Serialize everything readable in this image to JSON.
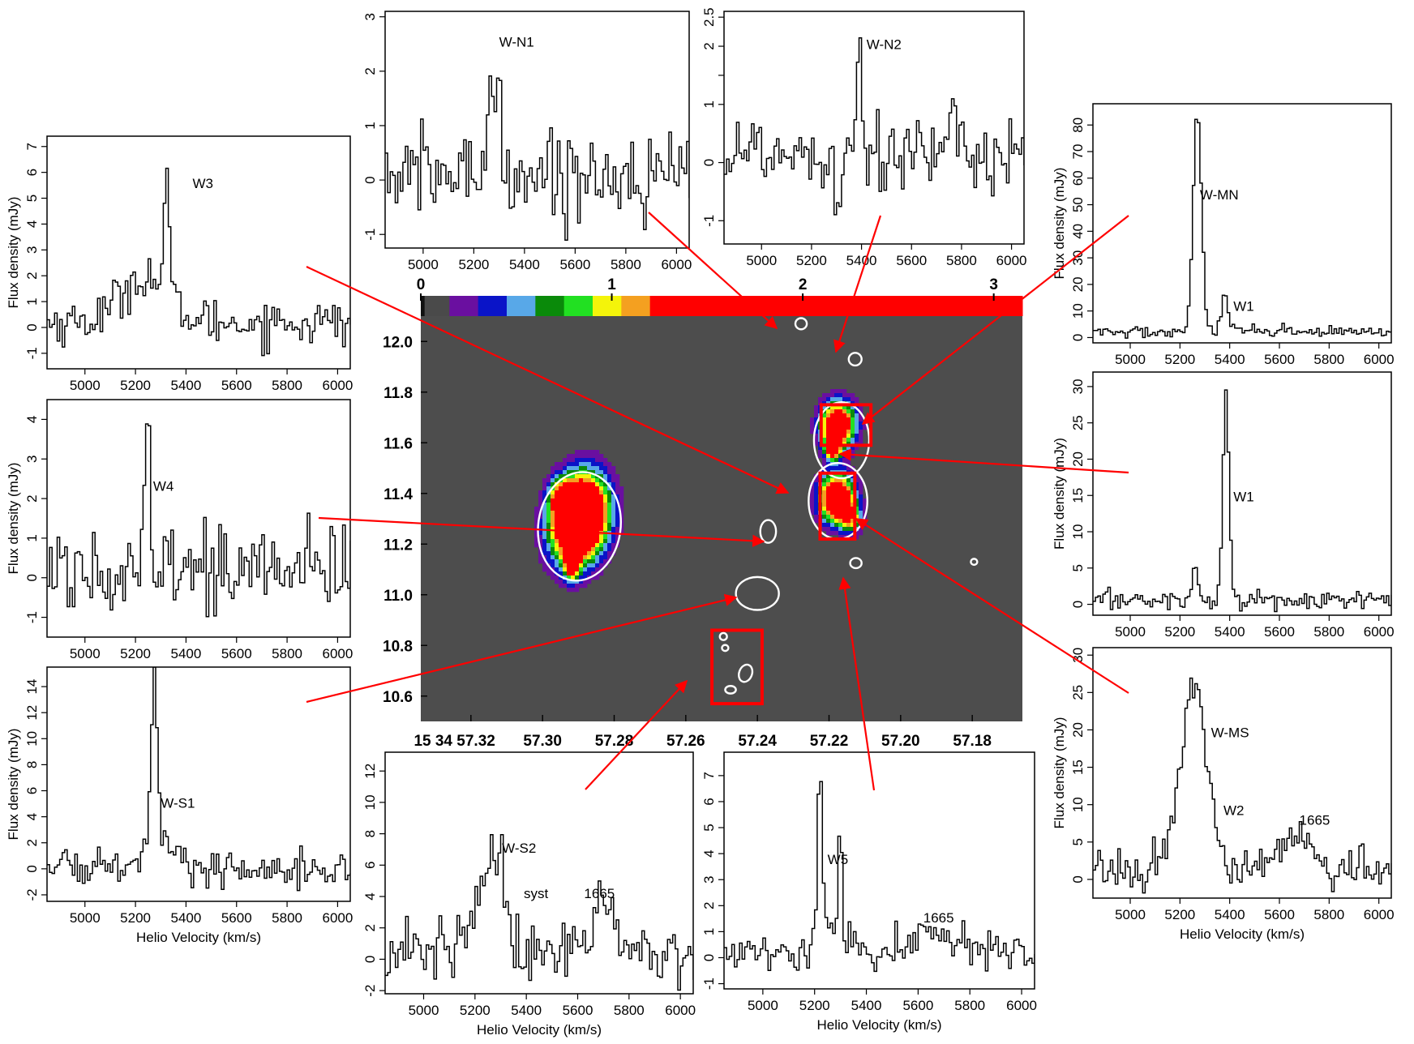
{
  "colorbar": {
    "tick_labels": [
      "0",
      "1",
      "2",
      "3"
    ],
    "tick_values": [
      0,
      1,
      2,
      3
    ],
    "range": [
      0,
      3.15
    ],
    "colors": [
      {
        "from": 0.0,
        "to": 0.02,
        "color": "#111111"
      },
      {
        "from": 0.02,
        "to": 0.15,
        "color": "#4a4a4a"
      },
      {
        "from": 0.15,
        "to": 0.3,
        "color": "#6a0fa0"
      },
      {
        "from": 0.3,
        "to": 0.45,
        "color": "#0a14c8"
      },
      {
        "from": 0.45,
        "to": 0.6,
        "color": "#58a8e8"
      },
      {
        "from": 0.6,
        "to": 0.75,
        "color": "#0a8a0a"
      },
      {
        "from": 0.75,
        "to": 0.9,
        "color": "#22e022"
      },
      {
        "from": 0.9,
        "to": 1.05,
        "color": "#f4f40a"
      },
      {
        "from": 1.05,
        "to": 1.2,
        "color": "#f4a020"
      },
      {
        "from": 1.2,
        "to": 3.15,
        "color": "#ff0000"
      }
    ]
  },
  "map": {
    "xlim": [
      57.334,
      57.166
    ],
    "ylim": [
      10.5,
      12.1
    ],
    "x_ticks": [
      57.32,
      57.3,
      57.28,
      57.26,
      57.24,
      57.22,
      57.2,
      57.18
    ],
    "x_tick_labels": [
      "15 34 57.32",
      "57.30",
      "57.28",
      "57.26",
      "57.24",
      "57.22",
      "57.20",
      "57.18"
    ],
    "y_ticks": [
      10.6,
      10.8,
      11.0,
      11.2,
      11.4,
      11.6,
      11.8,
      12.0
    ],
    "y_tick_labels": [
      "10.6",
      "10.8",
      "11.0",
      "11.2",
      "11.4",
      "11.6",
      "11.8",
      "12.0"
    ],
    "background_color": "#4d4d4d",
    "contour_color": "#ffffff",
    "box_color": "#ff0000",
    "boxes": [
      {
        "x1": 57.2222,
        "x2": 57.2083,
        "y1": 11.59,
        "y2": 11.75
      },
      {
        "x1": 57.2225,
        "x2": 57.2128,
        "y1": 11.22,
        "y2": 11.48
      },
      {
        "x1": 57.2527,
        "x2": 57.2387,
        "y1": 10.57,
        "y2": 10.86
      }
    ]
  },
  "arrows": {
    "color": "#ff0000",
    "note": "callout arrows connect panels to map regions"
  },
  "chart_data": [
    {
      "type": "line",
      "id": "W3",
      "label": "W3",
      "xlabel": "",
      "ylabel": "Flux density (mJy)",
      "xlim": [
        4850,
        6050
      ],
      "ylim": [
        -1.6,
        7.4
      ],
      "x_ticks": [
        5000,
        5200,
        5400,
        5600,
        5800,
        6000
      ],
      "y_ticks": [
        -1,
        0,
        1,
        2,
        3,
        4,
        5,
        6,
        7
      ],
      "noise": 0.45,
      "components": [
        {
          "center": 5230,
          "sigma": 90,
          "amp": 1.8
        },
        {
          "center": 5318,
          "sigma": 10,
          "amp": 4.6
        }
      ],
      "baseline": 0.2
    },
    {
      "type": "line",
      "id": "W-N1",
      "label": "W-N1",
      "xlabel": "",
      "ylabel": "",
      "xlim": [
        4850,
        6050
      ],
      "ylim": [
        -1.25,
        3.1
      ],
      "x_ticks": [
        5000,
        5200,
        5400,
        5600,
        5800,
        6000
      ],
      "y_ticks": [
        -1,
        0,
        1,
        2,
        3
      ],
      "noise": 0.4,
      "components": [
        {
          "center": 5270,
          "sigma": 20,
          "amp": 1.6
        },
        {
          "center": 5300,
          "sigma": 7,
          "amp": 1.3
        }
      ],
      "baseline": 0.1
    },
    {
      "type": "line",
      "id": "W-N2",
      "label": "W-N2",
      "xlabel": "",
      "ylabel": "",
      "xlim": [
        4850,
        6050
      ],
      "ylim": [
        -1.4,
        2.6
      ],
      "x_ticks": [
        5000,
        5200,
        5400,
        5600,
        5800,
        6000
      ],
      "y_ticks": [
        -1,
        0,
        1,
        1.5,
        2,
        2.5
      ],
      "y_tick_labels": [
        "-1",
        "0",
        "1",
        "",
        "2",
        "2.5"
      ],
      "noise": 0.35,
      "components": [
        {
          "center": 5385,
          "sigma": 9,
          "amp": 2.3
        },
        {
          "center": 5300,
          "sigma": 12,
          "amp": -0.8
        }
      ],
      "baseline": 0.2
    },
    {
      "type": "line",
      "id": "W-MN",
      "label": "W-MN",
      "label2": "W1",
      "xlabel": "",
      "ylabel": "Flux density (mJy)",
      "xlim": [
        4850,
        6050
      ],
      "ylim": [
        -2,
        88
      ],
      "x_ticks": [
        5000,
        5200,
        5400,
        5600,
        5800,
        6000
      ],
      "y_ticks": [
        0,
        10,
        20,
        30,
        40,
        50,
        60,
        70,
        80
      ],
      "noise": 1.2,
      "components": [
        {
          "center": 5265,
          "sigma": 17,
          "amp": 82
        },
        {
          "center": 5375,
          "sigma": 14,
          "amp": 14
        }
      ],
      "baseline": 2
    },
    {
      "type": "line",
      "id": "W4",
      "label": "W4",
      "xlabel": "",
      "ylabel": "Flux density (mJy)",
      "xlim": [
        4850,
        6050
      ],
      "ylim": [
        -1.5,
        4.5
      ],
      "x_ticks": [
        5000,
        5200,
        5400,
        5600,
        5800,
        6000
      ],
      "y_ticks": [
        -1,
        0,
        1,
        2,
        3,
        4
      ],
      "noise": 0.55,
      "components": [
        {
          "center": 5245,
          "sigma": 9,
          "amp": 3.8
        },
        {
          "center": 5225,
          "sigma": 25,
          "amp": 1.0
        },
        {
          "center": 5330,
          "sigma": 12,
          "amp": 1.0
        }
      ],
      "baseline": 0.2
    },
    {
      "type": "line",
      "id": "W1",
      "label": "W1",
      "xlabel": "",
      "ylabel": "Flux density (mJy)",
      "xlim": [
        4850,
        6050
      ],
      "ylim": [
        -1.5,
        32
      ],
      "x_ticks": [
        5000,
        5200,
        5400,
        5600,
        5800,
        6000
      ],
      "y_ticks": [
        0,
        5,
        10,
        15,
        20,
        25,
        30
      ],
      "noise": 0.7,
      "components": [
        {
          "center": 5380,
          "sigma": 12,
          "amp": 29
        },
        {
          "center": 5255,
          "sigma": 14,
          "amp": 3.5
        }
      ],
      "baseline": 0.6
    },
    {
      "type": "line",
      "id": "W-S1",
      "label": "W-S1",
      "xlabel": "Helio Velocity (km/s)",
      "ylabel": "Flux density (mJy)",
      "xlim": [
        4850,
        6050
      ],
      "ylim": [
        -2.5,
        15.5
      ],
      "x_ticks": [
        5000,
        5200,
        5400,
        5600,
        5800,
        6000
      ],
      "y_ticks": [
        -2,
        0,
        2,
        4,
        6,
        8,
        10,
        12,
        14
      ],
      "noise": 0.8,
      "components": [
        {
          "center": 5268,
          "sigma": 10,
          "amp": 13
        },
        {
          "center": 5280,
          "sigma": 35,
          "amp": 3.5
        }
      ],
      "baseline": 0.2
    },
    {
      "type": "line",
      "id": "W-S2",
      "label": "W-S2",
      "label2": "syst",
      "label3": "1665",
      "xlabel": "Helio Velocity (km/s)",
      "ylabel": "",
      "xlim": [
        4850,
        6050
      ],
      "ylim": [
        -2.2,
        13.2
      ],
      "x_ticks": [
        5000,
        5200,
        5400,
        5600,
        5800,
        6000
      ],
      "y_ticks": [
        -2,
        0,
        2,
        4,
        6,
        8,
        10,
        12
      ],
      "noise": 1.1,
      "components": [
        {
          "center": 5250,
          "sigma": 55,
          "amp": 5
        },
        {
          "center": 5295,
          "sigma": 7,
          "amp": 7
        },
        {
          "center": 5700,
          "sigma": 60,
          "amp": 2.2
        }
      ],
      "baseline": 0.5
    },
    {
      "type": "line",
      "id": "W5",
      "label": "W5",
      "label2": "1665",
      "xlabel": "Helio Velocity (km/s)",
      "ylabel": "",
      "xlim": [
        4850,
        6050
      ],
      "ylim": [
        -1.2,
        7.9
      ],
      "x_ticks": [
        5000,
        5200,
        5400,
        5600,
        5800,
        6000
      ],
      "y_ticks": [
        -1,
        0,
        1,
        2,
        3,
        4,
        5,
        6,
        7
      ],
      "noise": 0.4,
      "components": [
        {
          "center": 5215,
          "sigma": 8,
          "amp": 6.8
        },
        {
          "center": 5295,
          "sigma": 8,
          "amp": 4.2
        },
        {
          "center": 5255,
          "sigma": 40,
          "amp": 1.2
        },
        {
          "center": 5640,
          "sigma": 60,
          "amp": 1.0
        }
      ],
      "baseline": 0.2
    },
    {
      "type": "line",
      "id": "W-MS",
      "label": "W-MS",
      "label2": "W2",
      "label3": "1665",
      "xlabel": "Helio Velocity (km/s)",
      "ylabel": "Flux density (mJy)",
      "xlim": [
        4850,
        6050
      ],
      "ylim": [
        -2.5,
        31
      ],
      "x_ticks": [
        5000,
        5200,
        5400,
        5600,
        5800,
        6000
      ],
      "y_ticks": [
        0,
        5,
        10,
        15,
        20,
        25,
        30
      ],
      "noise": 1.3,
      "components": [
        {
          "center": 5250,
          "sigma": 55,
          "amp": 25
        },
        {
          "center": 5660,
          "sigma": 65,
          "amp": 5
        }
      ],
      "baseline": 1
    }
  ]
}
